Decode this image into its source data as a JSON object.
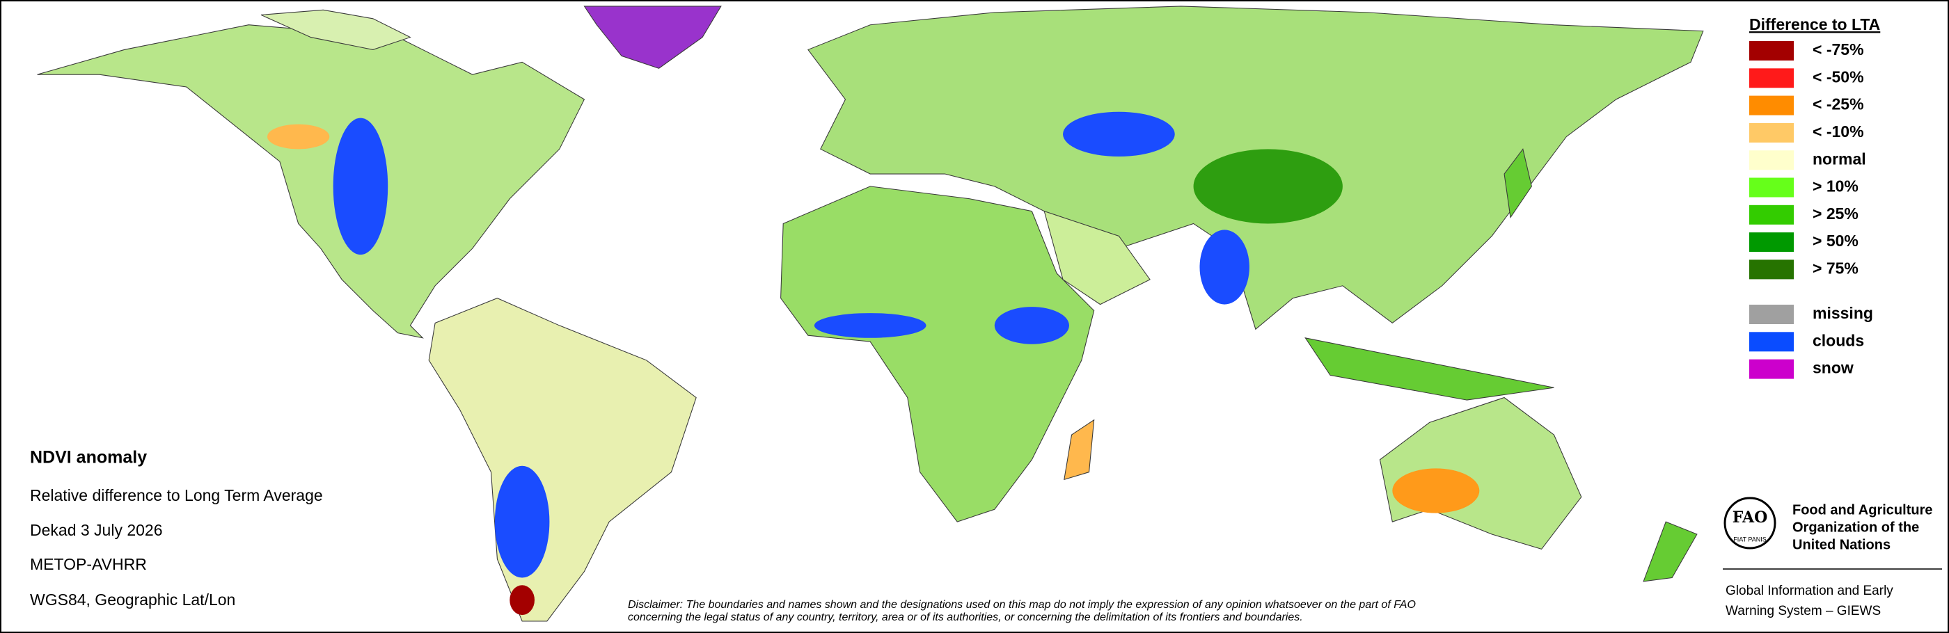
{
  "legend": {
    "title": "Difference to LTA",
    "items": [
      {
        "label": "< -75%",
        "color": "#a30000"
      },
      {
        "label": "< -50%",
        "color": "#ff1a1a"
      },
      {
        "label": "< -25%",
        "color": "#ff8c00"
      },
      {
        "label": "< -10%",
        "color": "#ffc966"
      },
      {
        "label": "normal",
        "color": "#ffffcc"
      },
      {
        "label": "> 10%",
        "color": "#66ff1a"
      },
      {
        "label": "> 25%",
        "color": "#33cc00"
      },
      {
        "label": "> 50%",
        "color": "#009900"
      },
      {
        "label": "> 75%",
        "color": "#267300"
      }
    ],
    "extra_items": [
      {
        "label": "missing",
        "color": "#a0a0a0"
      },
      {
        "label": "clouds",
        "color": "#0a4cff"
      },
      {
        "label": "snow",
        "color": "#cc00cc"
      }
    ]
  },
  "info": {
    "title": "NDVI anomaly",
    "lines": [
      "Relative difference to Long Term Average",
      "Dekad 3 July 2026",
      "METOP-AVHRR",
      "WGS84, Geographic Lat/Lon"
    ]
  },
  "disclaimer": {
    "lines": [
      "Disclaimer: The boundaries and names shown and the designations used on this map do not imply the expression of any opinion whatsoever on the part of FAO",
      "concerning the legal status of any country, territory, area or of its authorities, or concerning the delimitation of its frontiers and boundaries."
    ]
  },
  "logo": {
    "mark": "FAO",
    "motto": "FIAT PANIS",
    "org_lines": [
      "Food and Agriculture",
      "Organization of the",
      "United Nations"
    ],
    "giews_lines": [
      "Global Information and Early",
      "Warning System – GIEWS"
    ]
  }
}
